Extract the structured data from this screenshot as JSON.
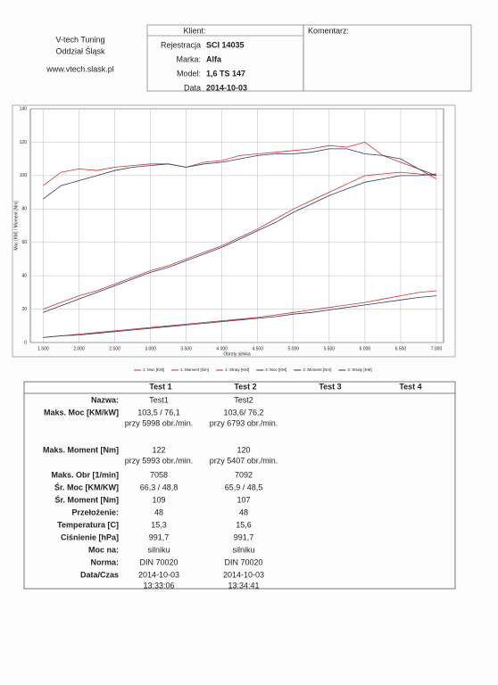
{
  "header": {
    "company": [
      "V-tech Tuning",
      "Oddział Śląsk",
      "www.vtech.slask.pl"
    ],
    "client_title": "Klient:",
    "fields": [
      {
        "label": "Rejestracja",
        "value": "SCI 14035"
      },
      {
        "label": "Marka:",
        "value": "Alfa"
      },
      {
        "label": "Model:",
        "value": "1,6 TS 147"
      },
      {
        "label": "Data",
        "value": "2014-10-03"
      }
    ],
    "comment_title": "Komentarz:"
  },
  "chart_data": {
    "type": "line",
    "x_label": "Obroty silnika",
    "y_label": "Moc [KM] / Moment [Nm]",
    "x": [
      1500,
      1750,
      2000,
      2250,
      2500,
      2750,
      3000,
      3250,
      3500,
      3750,
      4000,
      4250,
      4500,
      4750,
      5000,
      5250,
      5500,
      5750,
      6000,
      6250,
      6500,
      6750,
      7000
    ],
    "series": [
      {
        "name": "1: Moc [KM]",
        "color": "#d03030",
        "values": [
          20,
          24,
          28,
          31,
          35,
          39,
          43,
          46,
          50,
          54,
          58,
          63,
          68,
          74,
          80,
          85,
          90,
          95,
          100,
          101,
          102,
          101,
          100
        ]
      },
      {
        "name": "1: Moment [Nm]",
        "color": "#d03030",
        "values": [
          94,
          102,
          104,
          103,
          105,
          106,
          107,
          107,
          105,
          108,
          109,
          112,
          113,
          114,
          115,
          116,
          118,
          117,
          120,
          112,
          108,
          104,
          98
        ]
      },
      {
        "name": "1: Straty [KM]",
        "color": "#d03030",
        "values": [
          3,
          4,
          5,
          6,
          7,
          8,
          9,
          10,
          11,
          12,
          13,
          14,
          15,
          16.5,
          18,
          19.5,
          21,
          22.5,
          24,
          26,
          28,
          30,
          31
        ]
      },
      {
        "name": "2: Moc [KM]",
        "color": "#2a3a6a",
        "values": [
          18,
          22,
          26,
          30,
          34,
          38,
          42,
          45,
          49,
          53,
          57,
          62,
          67,
          72,
          78,
          83,
          88,
          92,
          96,
          98,
          100,
          100,
          101
        ]
      },
      {
        "name": "2: Moment [Nm]",
        "color": "#2a3a6a",
        "values": [
          86,
          94,
          97,
          100,
          103,
          105,
          106,
          107,
          105,
          107,
          108,
          110,
          112,
          113,
          113,
          114,
          116,
          116,
          113,
          112,
          110,
          104,
          100
        ]
      },
      {
        "name": "2: Straty [KM]",
        "color": "#2a3a6a",
        "values": [
          3,
          4,
          4.5,
          5.5,
          6.5,
          7.5,
          8.5,
          9.5,
          10.5,
          11.5,
          12.5,
          13.5,
          14.5,
          15.5,
          17,
          18,
          19.5,
          21,
          22.5,
          24,
          25.5,
          27,
          28
        ]
      }
    ],
    "xlim": [
      1320,
      7100
    ],
    "ylim": [
      0,
      140
    ],
    "xticks": [
      {
        "value": 1500,
        "label": "1.500"
      },
      {
        "value": 2000,
        "label": "2.000"
      },
      {
        "value": 2500,
        "label": "2.500"
      },
      {
        "value": 3000,
        "label": "3.000"
      },
      {
        "value": 3500,
        "label": "3.500"
      },
      {
        "value": 4000,
        "label": "4.000"
      },
      {
        "value": 4500,
        "label": "4.500"
      },
      {
        "value": 5000,
        "label": "5.000"
      },
      {
        "value": 5500,
        "label": "5.500"
      },
      {
        "value": 6000,
        "label": "6.000"
      },
      {
        "value": 6500,
        "label": "6.500"
      },
      {
        "value": 7000,
        "label": "7.000"
      }
    ],
    "yticks": [
      0,
      20,
      40,
      60,
      80,
      100,
      120,
      140
    ],
    "grid": true
  },
  "table": {
    "columns": [
      "Test 1",
      "Test 2",
      "Test 3",
      "Test 4"
    ],
    "rows": [
      {
        "label": "Nazwa:",
        "values": [
          [
            "Test1"
          ],
          [
            "Test2"
          ]
        ]
      },
      {
        "label": "Maks. Moc [KM/kW]",
        "values": [
          [
            "103,5 / 76,1",
            "przy 5998 obr./min."
          ],
          [
            "103,6/ 76,2",
            "przy 6793 obr./min."
          ]
        ]
      },
      {
        "label": "Maks. Moment [Nm]",
        "values": [
          [
            "122",
            "przy 5993 obr./min."
          ],
          [
            "120",
            "przy 5407 obr./min."
          ]
        ]
      },
      {
        "label": "Maks. Obr [1/min]",
        "values": [
          [
            "7058"
          ],
          [
            "7092"
          ]
        ]
      },
      {
        "label": "Śr. Moc [KM/KW]",
        "values": [
          [
            "66,3 / 48,8"
          ],
          [
            "65,9 / 48,5"
          ]
        ]
      },
      {
        "label": "Śr. Moment [Nm]",
        "values": [
          [
            "109"
          ],
          [
            "107"
          ]
        ]
      },
      {
        "label": "Przełożenie:",
        "values": [
          [
            "48"
          ],
          [
            "48"
          ]
        ]
      },
      {
        "label": "Temperatura [C]",
        "values": [
          [
            "15,3"
          ],
          [
            "15,6"
          ]
        ]
      },
      {
        "label": "Ciśnienie [hPa]",
        "values": [
          [
            "991,7"
          ],
          [
            "991,7"
          ]
        ]
      },
      {
        "label": "Moc na:",
        "values": [
          [
            "silniku"
          ],
          [
            "silniku"
          ]
        ]
      },
      {
        "label": "Norma:",
        "values": [
          [
            "DIN 70020"
          ],
          [
            "DIN 70020"
          ]
        ]
      },
      {
        "label": "Data/Czas",
        "values": [
          [
            "2014-10-03",
            "13:33:06"
          ],
          [
            "2014-10-03",
            "13:34:41"
          ]
        ]
      }
    ]
  }
}
